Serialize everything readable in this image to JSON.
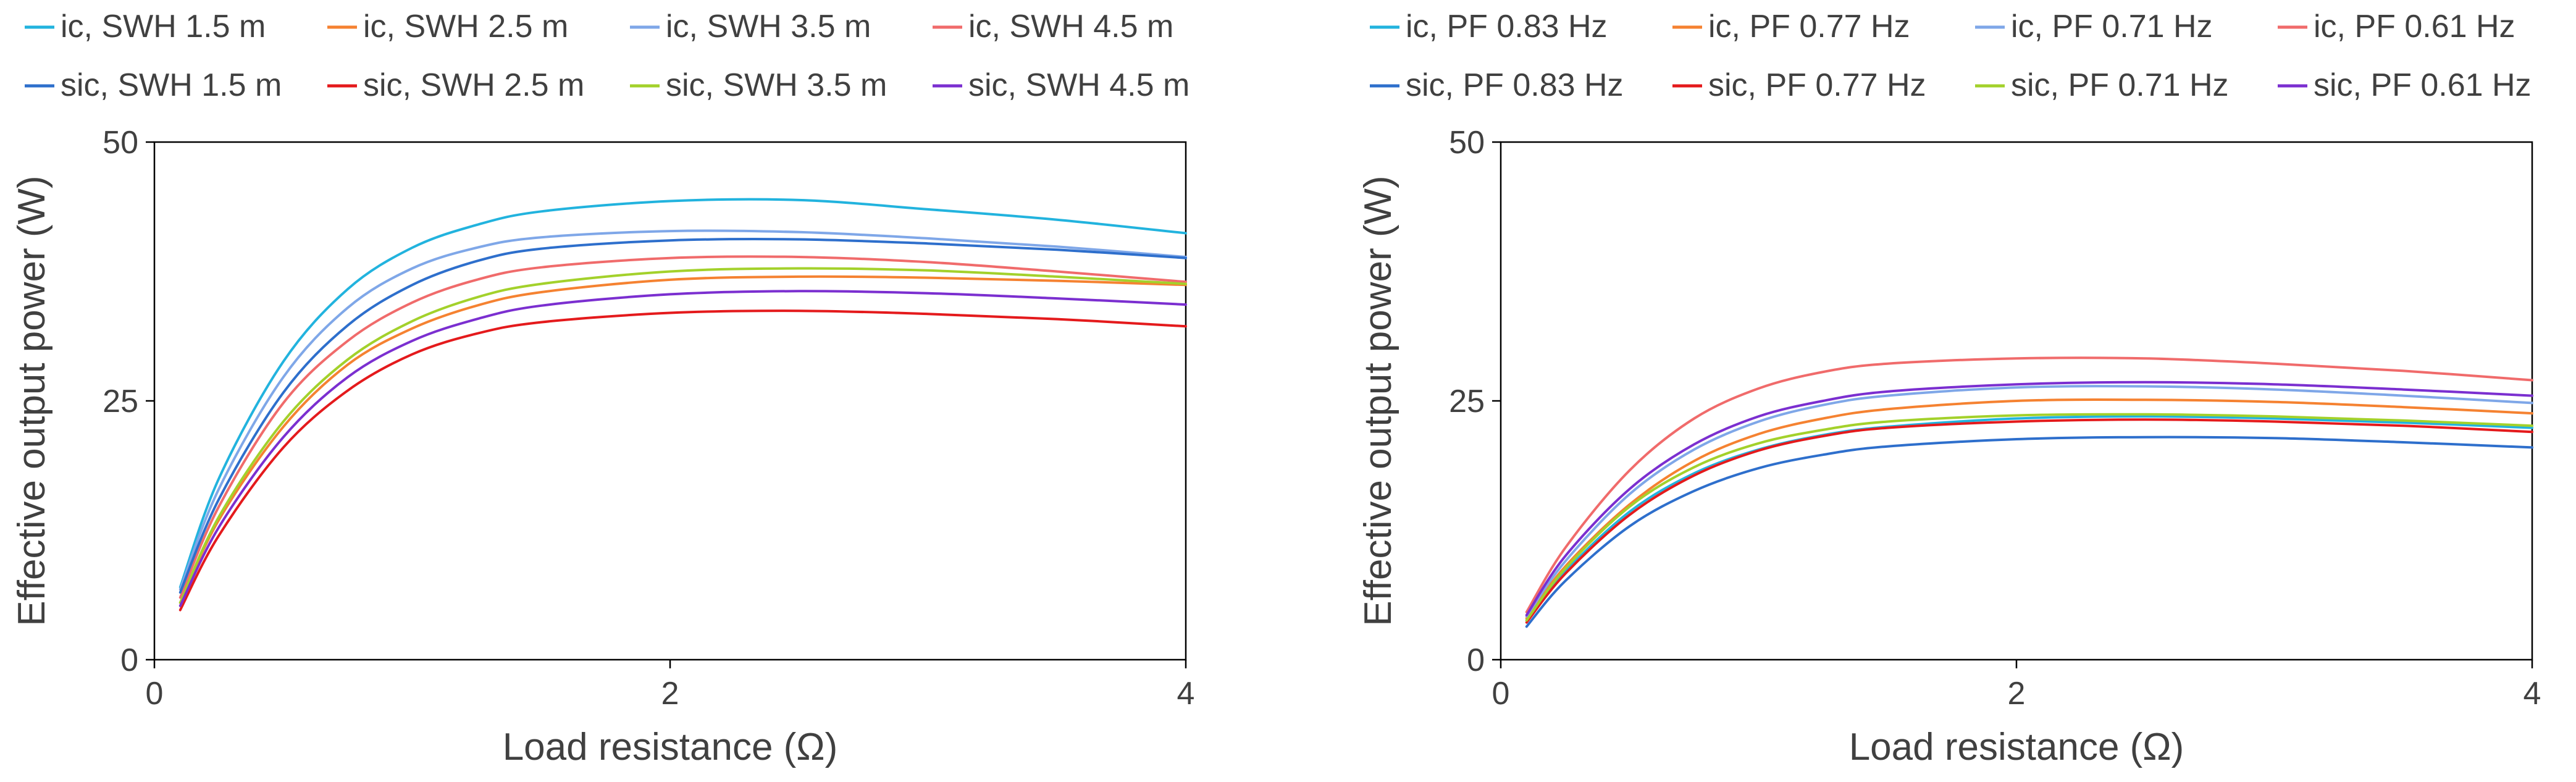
{
  "chart_data": [
    {
      "type": "line",
      "id": "left",
      "title": "",
      "xlabel": "Load resistance (Ω)",
      "ylabel": "Effective output power (W)",
      "xlim": [
        0,
        4
      ],
      "ylim": [
        0,
        50
      ],
      "xticks": [
        0,
        2,
        4
      ],
      "yticks": [
        0,
        25,
        50
      ],
      "x": [
        0.1,
        0.25,
        0.5,
        0.75,
        1.0,
        1.25,
        1.5,
        2.0,
        2.5,
        3.0,
        3.5,
        4.0
      ],
      "legend_position": "top",
      "series": [
        {
          "name": "ic, SWH 1.5 m",
          "color": "#22B3DE",
          "values": [
            7.0,
            17.5,
            28.8,
            35.8,
            39.8,
            42.0,
            43.3,
            44.3,
            44.4,
            43.5,
            42.5,
            41.2
          ]
        },
        {
          "name": "ic, SWH 2.5 m",
          "color": "#F58231",
          "values": [
            5.5,
            13.5,
            22.5,
            28.5,
            32.0,
            34.2,
            35.5,
            36.7,
            37.0,
            36.9,
            36.6,
            36.2
          ]
        },
        {
          "name": "ic, SWH 3.5 m",
          "color": "#7FA7E8",
          "values": [
            6.8,
            16.5,
            27.3,
            34.0,
            37.8,
            39.8,
            40.8,
            41.4,
            41.3,
            40.7,
            39.9,
            38.9
          ]
        },
        {
          "name": "ic, SWH 4.5 m",
          "color": "#F06B6B",
          "values": [
            6.0,
            14.8,
            24.8,
            30.8,
            34.5,
            36.7,
            37.9,
            38.8,
            38.9,
            38.4,
            37.5,
            36.5
          ]
        },
        {
          "name": "sic, SWH 1.5 m",
          "color": "#2E6FCC",
          "values": [
            6.5,
            15.5,
            25.8,
            32.3,
            36.2,
            38.5,
            39.7,
            40.5,
            40.6,
            40.2,
            39.6,
            38.8
          ]
        },
        {
          "name": "sic, SWH 2.5 m",
          "color": "#E41A1C",
          "values": [
            4.8,
            12.0,
            20.5,
            26.0,
            29.5,
            31.5,
            32.6,
            33.5,
            33.7,
            33.4,
            32.9,
            32.2
          ]
        },
        {
          "name": "sic, SWH 3.5 m",
          "color": "#A3D12B",
          "values": [
            5.5,
            13.8,
            23.0,
            29.0,
            32.7,
            35.0,
            36.3,
            37.5,
            37.8,
            37.6,
            37.0,
            36.3
          ]
        },
        {
          "name": "sic, SWH 4.5 m",
          "color": "#7B2FD0",
          "values": [
            5.2,
            12.8,
            21.5,
            27.3,
            30.8,
            32.9,
            34.2,
            35.3,
            35.6,
            35.4,
            34.9,
            34.3
          ]
        }
      ]
    },
    {
      "type": "line",
      "id": "right",
      "title": "",
      "xlabel": "Load resistance (Ω)",
      "ylabel": "Effective output power (W)",
      "xlim": [
        0,
        4
      ],
      "ylim": [
        0,
        50
      ],
      "xticks": [
        0,
        2,
        4
      ],
      "yticks": [
        0,
        25,
        50
      ],
      "x": [
        0.1,
        0.25,
        0.5,
        0.75,
        1.0,
        1.25,
        1.5,
        2.0,
        2.5,
        3.0,
        3.5,
        4.0
      ],
      "legend_position": "top",
      "series": [
        {
          "name": "ic, PF 0.83 Hz",
          "color": "#22B3DE",
          "values": [
            3.8,
            8.5,
            14.3,
            18.0,
            20.3,
            21.7,
            22.5,
            23.3,
            23.5,
            23.3,
            22.9,
            22.4
          ]
        },
        {
          "name": "ic, PF 0.77 Hz",
          "color": "#F58231",
          "values": [
            4.0,
            9.0,
            15.0,
            19.2,
            21.8,
            23.3,
            24.2,
            25.0,
            25.1,
            24.9,
            24.4,
            23.8
          ]
        },
        {
          "name": "ic, PF 0.71 Hz",
          "color": "#7FA7E8",
          "values": [
            4.2,
            9.5,
            16.0,
            20.3,
            23.0,
            24.6,
            25.5,
            26.3,
            26.4,
            26.1,
            25.5,
            24.8
          ]
        },
        {
          "name": "ic, PF 0.61 Hz",
          "color": "#F06B6B",
          "values": [
            4.6,
            10.8,
            18.3,
            23.3,
            26.2,
            27.8,
            28.6,
            29.1,
            29.1,
            28.6,
            27.9,
            27.0
          ]
        },
        {
          "name": "sic, PF 0.83 Hz",
          "color": "#2E6FCC",
          "values": [
            3.2,
            7.6,
            12.9,
            16.3,
            18.5,
            19.8,
            20.6,
            21.3,
            21.5,
            21.4,
            21.0,
            20.5
          ]
        },
        {
          "name": "sic, PF 0.77 Hz",
          "color": "#E41A1C",
          "values": [
            3.6,
            8.3,
            14.0,
            17.8,
            20.2,
            21.6,
            22.4,
            23.0,
            23.2,
            23.0,
            22.6,
            22.0
          ]
        },
        {
          "name": "sic, PF 0.71 Hz",
          "color": "#A3D12B",
          "values": [
            3.8,
            8.8,
            14.8,
            18.6,
            20.9,
            22.2,
            23.0,
            23.6,
            23.7,
            23.5,
            23.1,
            22.6
          ]
        },
        {
          "name": "sic, PF 0.61 Hz",
          "color": "#7B2FD0",
          "values": [
            4.3,
            10.0,
            16.5,
            20.8,
            23.5,
            25.0,
            25.9,
            26.6,
            26.8,
            26.6,
            26.1,
            25.5
          ]
        }
      ]
    }
  ]
}
